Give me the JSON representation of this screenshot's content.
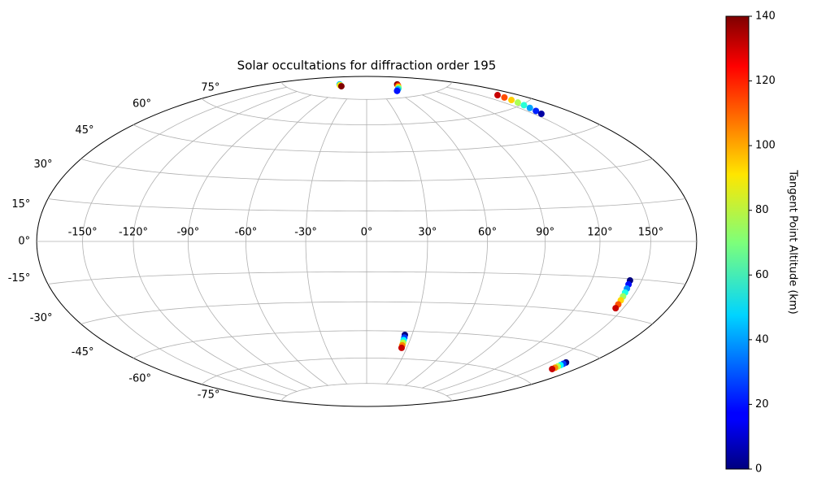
{
  "chart_data": {
    "type": "scatter",
    "projection": "hammer",
    "title": "Solar occultations for diffraction order 195",
    "x": [
      -89,
      -82,
      -73,
      97,
      90,
      83,
      77,
      70,
      64,
      164.3,
      163.1,
      161.8,
      160.6,
      159.3,
      158.1,
      156.8,
      155.6,
      142.8,
      143.1,
      143.5,
      143.8,
      144.1,
      144.4,
      144.8,
      145.1,
      25.3,
      25.5,
      25.6,
      25.8,
      25.9,
      26.1,
      162.6,
      162.7,
      162.9,
      163.0,
      163.2,
      163.3
    ],
    "y": [
      83,
      82.6,
      82.2,
      82.6,
      81.9,
      81.2,
      80.5,
      79.9,
      79.2,
      65.7,
      64.2,
      62.6,
      61.1,
      59.6,
      58.1,
      56.5,
      55.0,
      -15.7,
      -17.3,
      -19.0,
      -20.6,
      -22.2,
      -23.8,
      -25.5,
      -27.1,
      -47.0,
      -48.4,
      -49.8,
      -51.2,
      -52.6,
      -54.0,
      -50.2,
      -50.9,
      -51.6,
      -52.3,
      -53.0,
      -53.7
    ],
    "c": [
      45,
      90,
      140,
      140,
      115,
      90,
      65,
      40,
      20,
      130,
      112,
      94,
      76,
      58,
      40,
      22,
      5,
      0,
      19,
      37,
      56,
      74,
      93,
      111,
      130,
      0,
      26,
      52,
      78,
      104,
      130,
      0,
      26,
      52,
      78,
      104,
      130
    ],
    "colormap": "jet",
    "grid": true,
    "xticks": [
      {
        "value": -150,
        "label": "-150°"
      },
      {
        "value": -120,
        "label": "-120°"
      },
      {
        "value": -90,
        "label": "-90°"
      },
      {
        "value": -60,
        "label": "-60°"
      },
      {
        "value": -30,
        "label": "-30°"
      },
      {
        "value": 0,
        "label": "0°"
      },
      {
        "value": 30,
        "label": "30°"
      },
      {
        "value": 60,
        "label": "60°"
      },
      {
        "value": 90,
        "label": "90°"
      },
      {
        "value": 120,
        "label": "120°"
      },
      {
        "value": 150,
        "label": "150°"
      }
    ],
    "yticks": [
      {
        "value": -75,
        "label": "-75°"
      },
      {
        "value": -60,
        "label": "-60°"
      },
      {
        "value": -45,
        "label": "-45°"
      },
      {
        "value": -30,
        "label": "-30°"
      },
      {
        "value": -15,
        "label": "-15°"
      },
      {
        "value": 0,
        "label": "0°"
      },
      {
        "value": 15,
        "label": "15°"
      },
      {
        "value": 30,
        "label": "30°"
      },
      {
        "value": 45,
        "label": "45°"
      },
      {
        "value": 60,
        "label": "60°"
      },
      {
        "value": 75,
        "label": "75°"
      }
    ],
    "colorbar": {
      "label": "Tangent Point Altitude (km)",
      "lim": [
        0,
        140
      ],
      "ticks": [
        0,
        20,
        40,
        60,
        80,
        100,
        120,
        140
      ]
    }
  }
}
